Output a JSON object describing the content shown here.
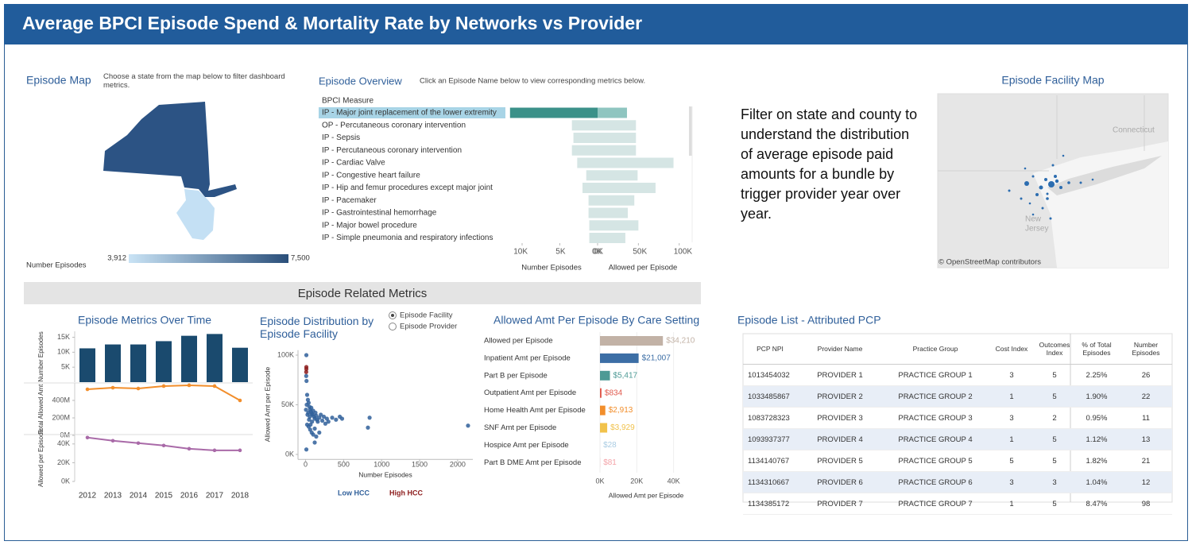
{
  "header": {
    "title": "Average BPCI Episode Spend & Mortality Rate by Networks vs Provider"
  },
  "episode_map": {
    "title": "Episode Map",
    "instruction": "Choose a state from the map below to filter dashboard metrics.",
    "legend_title": "Number Episodes",
    "legend_min": "3,912",
    "legend_max": "7,500"
  },
  "filter_note": "Filter on state and county to understand the distribution of average episode paid amounts for a bundle by trigger provider year over year.",
  "facility_map": {
    "title": "Episode Facility Map",
    "labels": [
      "Connecticut",
      "New",
      "Jersey"
    ],
    "attribution": "© OpenStreetMap contributors"
  },
  "section_title": "Episode Related Metrics",
  "episode_list": {
    "title": "Episode List - Attributed PCP",
    "columns": [
      "PCP NPI",
      "Provider Name",
      "Practice Group",
      "Cost Index",
      "Outcomes Index",
      "% of Total Episodes",
      "Number Episodes"
    ],
    "rows": [
      [
        "1013454032",
        "PROVIDER 1",
        "PRACTICE GROUP 1",
        "3",
        "5",
        "2.25%",
        "26"
      ],
      [
        "1033485867",
        "PROVIDER 2",
        "PRACTICE GROUP 2",
        "1",
        "5",
        "1.90%",
        "22"
      ],
      [
        "1083728323",
        "PROVIDER 3",
        "PRACTICE GROUP 3",
        "3",
        "2",
        "0.95%",
        "11"
      ],
      [
        "1093937377",
        "PROVIDER 4",
        "PRACTICE GROUP 4",
        "1",
        "5",
        "1.12%",
        "13"
      ],
      [
        "1134140767",
        "PROVIDER 5",
        "PRACTICE GROUP 5",
        "5",
        "5",
        "1.82%",
        "21"
      ],
      [
        "1134310667",
        "PROVIDER 6",
        "PRACTICE GROUP 6",
        "3",
        "3",
        "1.04%",
        "12"
      ],
      [
        "1134385172",
        "PROVIDER 7",
        "PRACTICE GROUP 7",
        "1",
        "5",
        "8.47%",
        "98"
      ]
    ]
  },
  "chart_data": [
    {
      "type": "diverging_bar",
      "title": "Episode Overview",
      "subtitle": "Click an Episode Name below to view corresponding metrics below.",
      "header": "BPCI Measure",
      "categories": [
        "IP - Major joint replacement of the lower extremity",
        "OP - Percutaneous coronary intervention",
        "IP - Sepsis",
        "IP - Percutaneous coronary intervention",
        "IP - Cardiac Valve",
        "IP - Congestive heart failure",
        "IP - Hip and femur procedures except major joint",
        "IP - Pacemaker",
        "IP - Gastrointestinal hemorrhage",
        "IP - Major bowel procedure",
        "IP - Simple pneumonia and respiratory infections"
      ],
      "highlight": {
        "index": 0,
        "colors": [
          "#3b9189",
          "#8fc5c0"
        ],
        "label_color": "#a8d4e6"
      },
      "series": [
        {
          "name": "Number Episodes",
          "color": "#d5e5e4",
          "values": [
            11600,
            3400,
            3200,
            3400,
            2700,
            1500,
            2000,
            1200,
            1200,
            1100,
            1100
          ],
          "xlim": [
            0,
            12000
          ],
          "xticks": [
            {
              "value": 10000,
              "label": "10K"
            },
            {
              "value": 5000,
              "label": "5K"
            },
            {
              "value": 0,
              "label": "0K"
            }
          ]
        },
        {
          "name": "Allowed per Episode",
          "color": "#d5e5e4",
          "values": [
            36000,
            47000,
            47000,
            47000,
            93000,
            49000,
            71000,
            45000,
            37000,
            50000,
            34000
          ],
          "xlim": [
            0,
            110000
          ],
          "xticks": [
            {
              "value": 0,
              "label": "0K"
            },
            {
              "value": 50000,
              "label": "50K"
            },
            {
              "value": 100000,
              "label": "100K"
            }
          ]
        }
      ]
    },
    {
      "type": "multi_panel",
      "title": "Episode Metrics Over Time",
      "categories": [
        "2012",
        "2013",
        "2014",
        "2015",
        "2016",
        "2017",
        "2018"
      ],
      "panels": [
        {
          "type": "bar",
          "ylabel": "Number Episodes",
          "color": "#1a4a6e",
          "values": [
            11300,
            12600,
            12600,
            13700,
            15500,
            16100,
            11500
          ],
          "ylim": [
            0,
            17000
          ],
          "yticks": [
            {
              "value": 5000,
              "label": "5K"
            },
            {
              "value": 10000,
              "label": "10K"
            },
            {
              "value": 15000,
              "label": "15K"
            }
          ]
        },
        {
          "type": "line",
          "ylabel": "Total Allowed Amt",
          "color": "#f28e2b",
          "values": [
            527000000,
            545000000,
            536000000,
            564000000,
            573000000,
            564000000,
            400000000
          ],
          "ylim": [
            0,
            600000000
          ],
          "yticks": [
            {
              "value": 0,
              "label": "0M"
            },
            {
              "value": 200000000,
              "label": "200M"
            },
            {
              "value": 400000000,
              "label": "400M"
            }
          ]
        },
        {
          "type": "line",
          "ylabel": "Allowed per Episode",
          "color": "#a96aa8",
          "values": [
            46800,
            43400,
            40900,
            38300,
            34900,
            33200,
            33200
          ],
          "ylim": [
            0,
            50000
          ],
          "yticks": [
            {
              "value": 0,
              "label": "0K"
            },
            {
              "value": 20000,
              "label": "20K"
            },
            {
              "value": 40000,
              "label": "40K"
            }
          ]
        }
      ]
    },
    {
      "type": "scatter",
      "title": "Episode Distribution by Episode Facility",
      "toggle": {
        "options": [
          "Episode Facility",
          "Episode Provider"
        ],
        "selected": 0
      },
      "xlabel": "Number Episodes",
      "ylabel": "Allowed Amt per Episode",
      "xlim": [
        -100,
        2200
      ],
      "xticks": [
        0,
        500,
        1000,
        1500,
        2000
      ],
      "ylim": [
        -5000,
        105000
      ],
      "yticks": [
        {
          "value": 0,
          "label": "0K"
        },
        {
          "value": 50000,
          "label": "50K"
        },
        {
          "value": 100000,
          "label": "100K"
        }
      ],
      "series": [
        {
          "name": "Low HCC",
          "color": "#2f5f9a",
          "x": [
            10,
            8,
            12,
            20,
            30,
            40,
            50,
            60,
            70,
            80,
            90,
            100,
            110,
            120,
            130,
            140,
            150,
            160,
            180,
            200,
            220,
            240,
            260,
            280,
            300,
            350,
            400,
            450,
            480,
            20,
            40,
            60,
            80,
            100,
            120,
            140,
            5,
            15,
            25,
            35,
            45,
            55,
            65,
            75,
            85,
            820,
            842,
            2137,
            180,
            120,
            10
          ],
          "values": [
            100000,
            79000,
            74000,
            60000,
            55000,
            52000,
            48000,
            45000,
            43000,
            41000,
            40000,
            44000,
            38000,
            36000,
            42000,
            39000,
            35000,
            33000,
            37000,
            40000,
            34000,
            38000,
            31000,
            36000,
            33000,
            37000,
            35000,
            38000,
            36000,
            30000,
            28000,
            25000,
            22000,
            20000,
            26000,
            18000,
            45000,
            50000,
            40000,
            42000,
            35000,
            38000,
            30000,
            47000,
            33000,
            27000,
            37000,
            29000,
            22000,
            12000,
            5000
          ]
        },
        {
          "name": "High HCC",
          "color": "#8b1a1a",
          "x": [
            10,
            10,
            8
          ],
          "values": [
            88000,
            86000,
            83000
          ]
        }
      ]
    },
    {
      "type": "hbar",
      "title": "Allowed Amt Per Episode By Care Setting",
      "xlabel": "Allowed Amt per Episode",
      "categories": [
        "Allowed per Episode",
        "Inpatient Amt per Episode",
        "Part B per Episode",
        "Outpatient Amt per Episode",
        "Home Health Amt per Episode",
        "SNF Amt per Episode",
        "Hospice Amt per Episode",
        "Part B DME Amt per Episode"
      ],
      "values": [
        34210,
        21007,
        5417,
        834,
        2913,
        3929,
        28,
        81
      ],
      "value_labels": [
        "$34,210",
        "$21,007",
        "$5,417",
        "$834",
        "$2,913",
        "$3,929",
        "$28",
        "$81"
      ],
      "colors": [
        "#c2b2a6",
        "#3c6ea5",
        "#4d9a95",
        "#e05a4e",
        "#f28e2b",
        "#f1c24b",
        "#a9cce3",
        "#f4a3a8"
      ],
      "xlim": [
        0,
        54000
      ],
      "xticks": [
        {
          "value": 0,
          "label": "0K"
        },
        {
          "value": 20000,
          "label": "20K"
        },
        {
          "value": 40000,
          "label": "40K"
        }
      ],
      "grid": true
    }
  ]
}
